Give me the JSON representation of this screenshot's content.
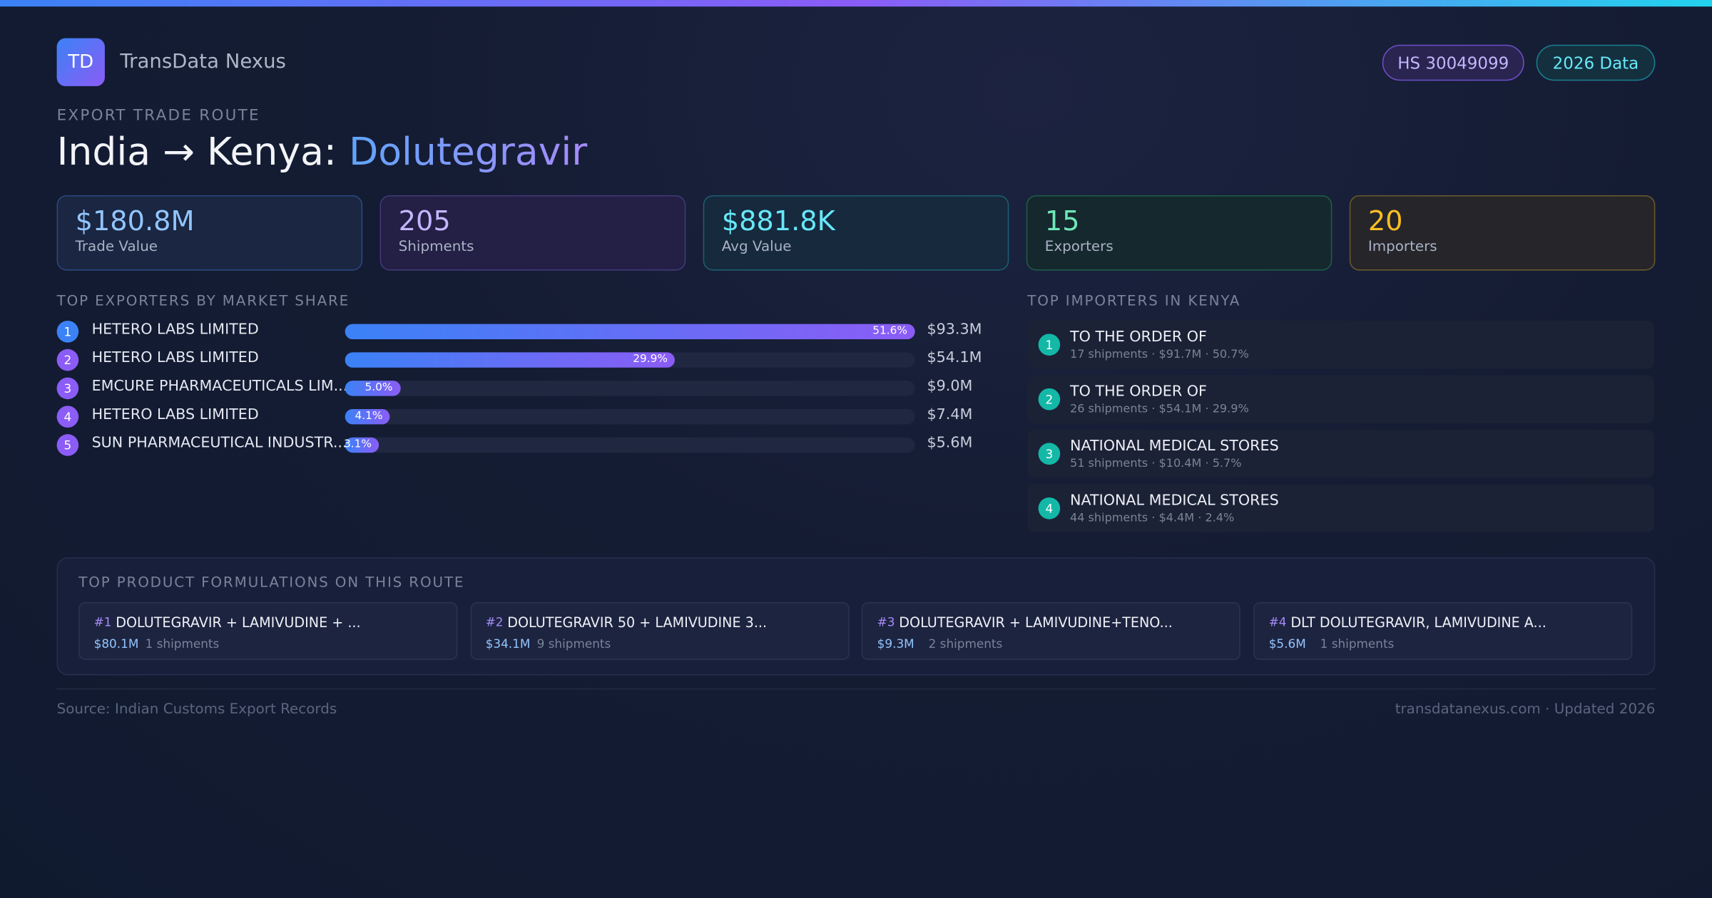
{
  "header": {
    "logo": "TD",
    "brand": "TransData Nexus",
    "badges": [
      "HS 30049099",
      "2026 Data"
    ]
  },
  "route": {
    "kicker": "EXPORT TRADE ROUTE",
    "title": "India → Kenya:",
    "product": "Dolutegravir"
  },
  "stats": [
    {
      "value": "$180.8M",
      "label": "Trade Value"
    },
    {
      "value": "205",
      "label": "Shipments"
    },
    {
      "value": "$881.8K",
      "label": "Avg Value"
    },
    {
      "value": "15",
      "label": "Exporters"
    },
    {
      "value": "20",
      "label": "Importers"
    }
  ],
  "exporters": {
    "title": "TOP EXPORTERS BY MARKET SHARE",
    "rows": [
      {
        "rank": 1,
        "name": "HETERO LABS LIMITED",
        "share": {
          "value": 51.6,
          "label": "51.6%"
        },
        "value": "$93.3M"
      },
      {
        "rank": 2,
        "name": "HETERO LABS LIMITED",
        "share": {
          "value": 29.9,
          "label": "29.9%"
        },
        "value": "$54.1M"
      },
      {
        "rank": 3,
        "name": "EMCURE PHARMACEUTICALS LIM...",
        "share": {
          "value": 5.0,
          "label": "5.0%"
        },
        "value": "$9.0M"
      },
      {
        "rank": 4,
        "name": "HETERO LABS LIMITED",
        "share": {
          "value": 4.1,
          "label": "4.1%"
        },
        "value": "$7.4M"
      },
      {
        "rank": 5,
        "name": "SUN PHARMACEUTICAL INDUSTR...",
        "share": {
          "value": 3.1,
          "label": "3.1%"
        },
        "value": "$5.6M"
      }
    ]
  },
  "importers": {
    "title": "TOP IMPORTERS IN KENYA",
    "rows": [
      {
        "rank": 1,
        "name": "TO THE ORDER OF",
        "detail": "17 shipments · $91.7M · 50.7%"
      },
      {
        "rank": 2,
        "name": "TO THE ORDER OF",
        "detail": "26 shipments · $54.1M · 29.9%"
      },
      {
        "rank": 3,
        "name": "NATIONAL MEDICAL STORES",
        "detail": "51 shipments · $10.4M · 5.7%"
      },
      {
        "rank": 4,
        "name": "NATIONAL MEDICAL STORES",
        "detail": "44 shipments · $4.4M · 2.4%"
      }
    ]
  },
  "formulations": {
    "title": "TOP PRODUCT FORMULATIONS ON THIS ROUTE",
    "items": [
      {
        "rank": "#1",
        "name": "DOLUTEGRAVIR + LAMIVUDINE + ...",
        "value": "$80.1M",
        "shipments": "1 shipments"
      },
      {
        "rank": "#2",
        "name": "DOLUTEGRAVIR 50 + LAMIVUDINE 3...",
        "value": "$34.1M",
        "shipments": "9 shipments"
      },
      {
        "rank": "#3",
        "name": "DOLUTEGRAVIR + LAMIVUDINE+TENO...",
        "value": "$9.3M",
        "shipments": "2 shipments"
      },
      {
        "rank": "#4",
        "name": "DLT DOLUTEGRAVIR, LAMIVUDINE A...",
        "value": "$5.6M",
        "shipments": "1 shipments"
      }
    ]
  },
  "footer": {
    "source": "Source: Indian Customs Export Records",
    "site": "transdatanexus.com · Updated 2026"
  }
}
